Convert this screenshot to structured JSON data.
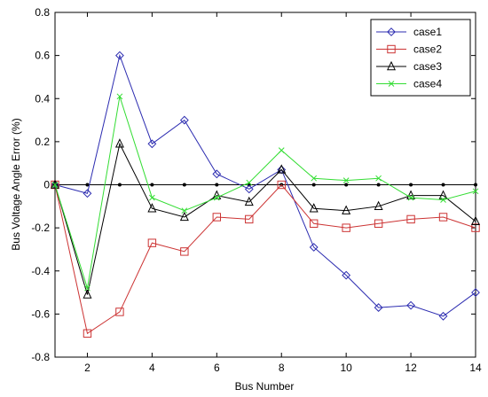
{
  "chart_data": {
    "type": "line",
    "title": "",
    "xlabel": "Bus Number",
    "ylabel": "Bus Voltage Angle Error (%)",
    "xlim": [
      1,
      14
    ],
    "ylim": [
      -0.8,
      0.8
    ],
    "xticks": [
      2,
      4,
      6,
      8,
      10,
      12,
      14
    ],
    "yticks": [
      -0.8,
      -0.6,
      -0.4,
      -0.2,
      0,
      0.2,
      0.4,
      0.6,
      0.8
    ],
    "ytick_labels": [
      "-0.8",
      "-0.6",
      "-0.4",
      "-0.2",
      "0",
      "0.2",
      "0.4",
      "0.6",
      "0.8"
    ],
    "x": [
      1,
      2,
      3,
      4,
      5,
      6,
      7,
      8,
      9,
      10,
      11,
      12,
      13,
      14
    ],
    "grid": false,
    "legend_position": "top-right",
    "reference_line": {
      "y": 0,
      "color": "#000000",
      "marker": "dot"
    },
    "series": [
      {
        "name": "case1",
        "color": "#2b2bb0",
        "marker": "diamond",
        "values": [
          0,
          -0.04,
          0.6,
          0.19,
          0.3,
          0.05,
          -0.02,
          0.07,
          -0.29,
          -0.42,
          -0.57,
          -0.56,
          -0.61,
          -0.5
        ]
      },
      {
        "name": "case2",
        "color": "#cc3333",
        "marker": "square",
        "values": [
          0,
          -0.69,
          -0.59,
          -0.27,
          -0.31,
          -0.15,
          -0.16,
          0,
          -0.18,
          -0.2,
          -0.18,
          -0.16,
          -0.15,
          -0.2
        ]
      },
      {
        "name": "case3",
        "color": "#000000",
        "marker": "triangle",
        "values": [
          0,
          -0.51,
          0.19,
          -0.11,
          -0.15,
          -0.05,
          -0.08,
          0.07,
          -0.11,
          -0.12,
          -0.1,
          -0.05,
          -0.05,
          -0.17
        ]
      },
      {
        "name": "case4",
        "color": "#33dd33",
        "marker": "x",
        "values": [
          0,
          -0.48,
          0.41,
          -0.06,
          -0.12,
          -0.06,
          0.01,
          0.16,
          0.03,
          0.02,
          0.03,
          -0.06,
          -0.07,
          -0.03
        ]
      }
    ]
  }
}
